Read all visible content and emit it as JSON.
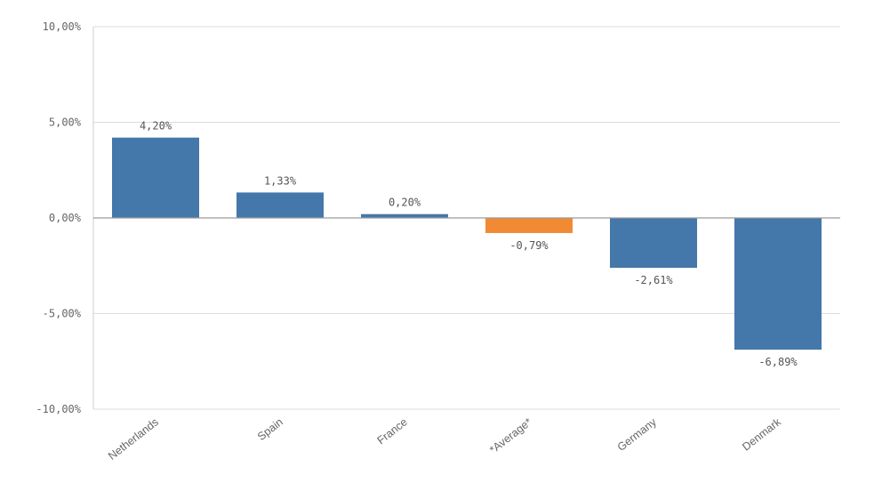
{
  "chart_data": {
    "type": "bar",
    "categories": [
      "Netherlands",
      "Spain",
      "France",
      "*Average*",
      "Germany",
      "Denmark"
    ],
    "values": [
      4.2,
      1.33,
      0.2,
      -0.79,
      -2.61,
      -6.89
    ],
    "value_labels": [
      "4,20%",
      "1,33%",
      "0,20%",
      "-0,79%",
      "-2,61%",
      "-6,89%"
    ],
    "highlight_category": "*Average*",
    "ylim": [
      -10,
      10
    ],
    "yticks": [
      10,
      5,
      0,
      -5,
      -10
    ],
    "ytick_labels": [
      "10,00%",
      "5,00%",
      "0,00%",
      "-5,00%",
      "-10,00%"
    ],
    "grid": true,
    "title": "",
    "xlabel": "",
    "ylabel": "",
    "colors": {
      "bar": "#4477aa",
      "highlight": "#f28a33"
    }
  }
}
